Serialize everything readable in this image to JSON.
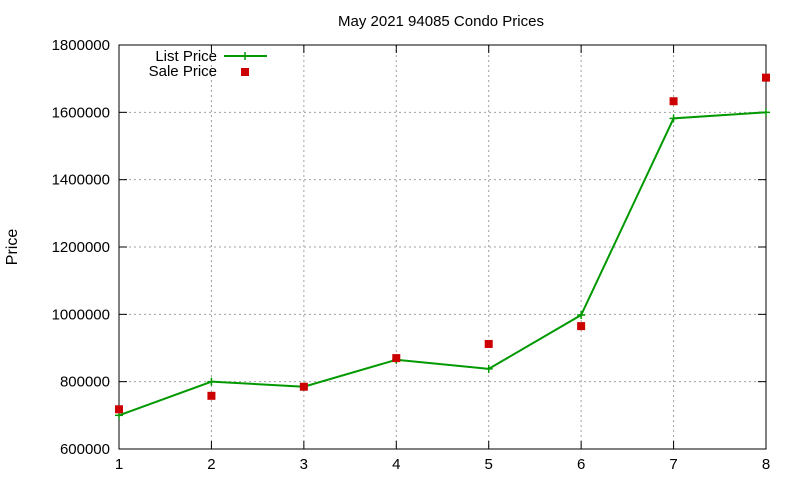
{
  "chart_data": {
    "type": "line",
    "title": "May 2021 94085 Condo Prices",
    "xlabel": "",
    "ylabel": "Price",
    "x": [
      1,
      2,
      3,
      4,
      5,
      6,
      7,
      8
    ],
    "xlim": [
      1,
      8
    ],
    "ylim": [
      600000,
      1800000
    ],
    "x_ticks": [
      "1",
      "2",
      "3",
      "4",
      "5",
      "6",
      "7",
      "8"
    ],
    "y_ticks": [
      "600000",
      "800000",
      "1000000",
      "1200000",
      "1400000",
      "1600000",
      "1800000"
    ],
    "grid": true,
    "legend_position": "top-left",
    "series": [
      {
        "name": "List Price",
        "style": "line-with-plus-markers",
        "color": "#009900",
        "values": [
          700000,
          800000,
          785000,
          865000,
          838000,
          998000,
          1582000,
          1600000
        ]
      },
      {
        "name": "Sale Price",
        "style": "square-markers",
        "color": "#cc0000",
        "values": [
          718000,
          758000,
          785000,
          870000,
          912000,
          965000,
          1633000,
          1703000
        ]
      }
    ]
  }
}
